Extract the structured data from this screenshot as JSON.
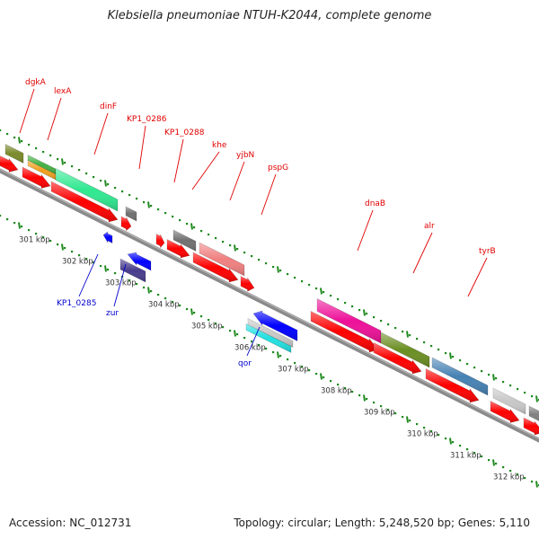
{
  "title": "Klebsiella pneumoniae NTUH-K2044, complete genome",
  "footer": {
    "accession": "Accession: NC_012731",
    "summary": "Topology: circular; Length: 5,248,520 bp; Genes: 5,110"
  },
  "colors": {
    "backbone": "#8a8a8a",
    "scale_dots": "#1f8a1f",
    "gene_label_upper": "#e00000",
    "gene_label_lower": "#0000cc",
    "cds_forward": "#ff0000",
    "cds_reverse": "#0000ff"
  },
  "scale_labels": [
    "301 kbp",
    "302 kbp",
    "303 kbp",
    "304 kbp",
    "305 kbp",
    "306 kbp",
    "307 kbp",
    "308 kbp",
    "309 kbp",
    "310 kbp",
    "311 kbp",
    "312 kbp"
  ],
  "upper_gene_labels": [
    "dgkA",
    "lexA",
    "dinF",
    "KP1_0286",
    "KP1_0288",
    "khe",
    "yjbN",
    "pspG",
    "dnaB",
    "alr",
    "tyrB"
  ],
  "lower_gene_labels": [
    "KP1_0285",
    "zur",
    "qor"
  ]
}
